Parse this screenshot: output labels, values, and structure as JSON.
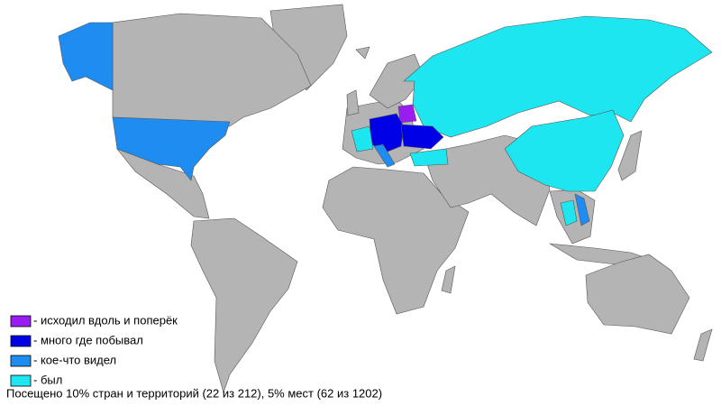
{
  "legend": [
    {
      "label": "- исходил вдоль и поперёк",
      "color": "#9b1cf0"
    },
    {
      "label": "- много где побывал",
      "color": "#0000e6"
    },
    {
      "label": "- кое-что видел",
      "color": "#1e8cf0"
    },
    {
      "label": "- был",
      "color": "#1ee6f0"
    }
  ],
  "footer": "Посещено 10% стран и территорий (22 из 212), 5% мест (62 из 1202)"
}
